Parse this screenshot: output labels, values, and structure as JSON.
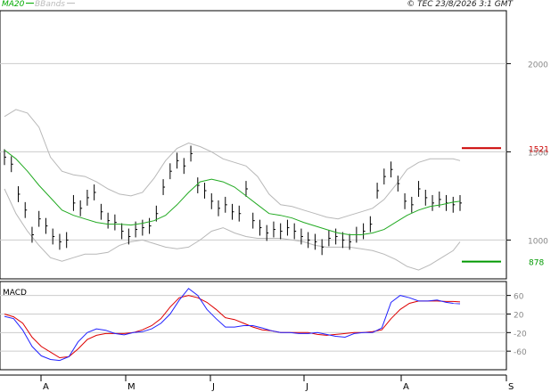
{
  "header": {
    "legend": [
      {
        "label": "MA20",
        "color": "#00aa00"
      },
      {
        "label": "BBands",
        "color": "#bbbbbb"
      }
    ],
    "copyright": "© TEC 23/8/2026 3:1 GMT"
  },
  "colors": {
    "ma20": "#22aa22",
    "bbands": "#b8b8b8",
    "ohlc": "#000000",
    "macd": "#2222ff",
    "signal": "#dd0000",
    "resistance": "#cc0000",
    "support": "#009900",
    "grid": "#cccccc"
  },
  "chart_data": [
    {
      "type": "line",
      "title": "",
      "ylim": [
        780,
        2300
      ],
      "y_ticks": [
        {
          "value": 1000,
          "label": "1000"
        },
        {
          "value": 1500,
          "label": "1500"
        },
        {
          "value": 2000,
          "label": "2000"
        }
      ],
      "x_month_labels": [
        "A",
        "M",
        "J",
        "J",
        "A",
        "S"
      ],
      "levels": [
        {
          "name": "resistance",
          "value": 1521,
          "label": "1521"
        },
        {
          "name": "support",
          "value": 878,
          "label": "878"
        }
      ],
      "series": [
        {
          "name": "price",
          "x": [
            0,
            3,
            6,
            9,
            12,
            15,
            18,
            21,
            24,
            27,
            30,
            33,
            36,
            39,
            42,
            45,
            48,
            51,
            54,
            57,
            60,
            63,
            66,
            69,
            72,
            75,
            78,
            81,
            84,
            87,
            90,
            93,
            96,
            99,
            102,
            105,
            108,
            111,
            114,
            117,
            120,
            123,
            126,
            129,
            132,
            135,
            138,
            141,
            144,
            147,
            150,
            153,
            156,
            159,
            162,
            165,
            168,
            171,
            174,
            177,
            180,
            183,
            186,
            189,
            192,
            195,
            198
          ],
          "y": [
            1470,
            1430,
            1260,
            1170,
            1030,
            1120,
            1080,
            1020,
            990,
            1000,
            1210,
            1180,
            1240,
            1270,
            1160,
            1110,
            1100,
            1050,
            1020,
            1060,
            1070,
            1080,
            1150,
            1300,
            1390,
            1450,
            1420,
            1490,
            1310,
            1280,
            1220,
            1180,
            1200,
            1160,
            1150,
            1290,
            1110,
            1070,
            1040,
            1060,
            1050,
            1070,
            1050,
            1020,
            1000,
            990,
            960,
            1010,
            1020,
            1000,
            990,
            1030,
            1050,
            1090,
            1280,
            1360,
            1400,
            1320,
            1220,
            1200,
            1290,
            1240,
            1210,
            1230,
            1210,
            1200,
            1210
          ]
        },
        {
          "name": "ma20",
          "x": [
            0,
            5,
            10,
            15,
            20,
            25,
            30,
            35,
            40,
            45,
            50,
            55,
            60,
            65,
            70,
            75,
            80,
            85,
            90,
            95,
            100,
            105,
            110,
            115,
            120,
            125,
            130,
            135,
            140,
            145,
            150,
            155,
            160,
            165,
            170,
            175,
            180,
            185,
            190,
            195,
            198
          ],
          "y": [
            1510,
            1460,
            1390,
            1310,
            1240,
            1170,
            1140,
            1120,
            1100,
            1090,
            1090,
            1085,
            1095,
            1110,
            1140,
            1200,
            1270,
            1330,
            1345,
            1330,
            1300,
            1250,
            1200,
            1150,
            1140,
            1125,
            1100,
            1080,
            1060,
            1040,
            1030,
            1030,
            1040,
            1060,
            1100,
            1140,
            1170,
            1190,
            1200,
            1215,
            1220
          ]
        },
        {
          "name": "bband_upper",
          "x": [
            0,
            5,
            10,
            15,
            20,
            25,
            30,
            35,
            40,
            45,
            50,
            55,
            60,
            65,
            70,
            75,
            80,
            85,
            90,
            95,
            100,
            105,
            110,
            115,
            120,
            125,
            130,
            135,
            140,
            145,
            150,
            155,
            160,
            165,
            170,
            175,
            180,
            185,
            190,
            195,
            198
          ],
          "y": [
            1700,
            1740,
            1720,
            1640,
            1470,
            1390,
            1370,
            1360,
            1330,
            1290,
            1260,
            1250,
            1270,
            1350,
            1450,
            1520,
            1550,
            1530,
            1500,
            1460,
            1440,
            1420,
            1360,
            1260,
            1200,
            1190,
            1170,
            1150,
            1130,
            1120,
            1140,
            1160,
            1180,
            1230,
            1310,
            1400,
            1440,
            1460,
            1460,
            1460,
            1450
          ]
        },
        {
          "name": "bband_lower",
          "x": [
            0,
            5,
            10,
            15,
            20,
            25,
            30,
            35,
            40,
            45,
            50,
            55,
            60,
            65,
            70,
            75,
            80,
            85,
            90,
            95,
            100,
            105,
            110,
            115,
            120,
            125,
            130,
            135,
            140,
            145,
            150,
            155,
            160,
            165,
            170,
            175,
            180,
            185,
            190,
            195,
            198
          ],
          "y": [
            1290,
            1150,
            1050,
            970,
            900,
            880,
            900,
            920,
            920,
            930,
            970,
            990,
            1000,
            980,
            960,
            950,
            960,
            1000,
            1050,
            1070,
            1040,
            1020,
            1010,
            1010,
            1010,
            1000,
            990,
            970,
            960,
            960,
            960,
            950,
            940,
            920,
            890,
            850,
            830,
            860,
            900,
            940,
            990
          ]
        }
      ]
    },
    {
      "type": "line",
      "title": "MACD",
      "ylim": [
        -100,
        90
      ],
      "y_ticks": [
        {
          "value": 60,
          "label": "60"
        },
        {
          "value": 20,
          "label": "20"
        },
        {
          "value": -20,
          "label": "-20"
        },
        {
          "value": -60,
          "label": "-60"
        }
      ],
      "series": [
        {
          "name": "macd",
          "x": [
            0,
            4,
            8,
            12,
            16,
            20,
            24,
            28,
            32,
            36,
            40,
            44,
            48,
            52,
            56,
            60,
            64,
            68,
            72,
            76,
            80,
            84,
            88,
            92,
            96,
            100,
            104,
            108,
            112,
            116,
            120,
            124,
            128,
            132,
            136,
            140,
            144,
            148,
            152,
            156,
            160,
            164,
            168,
            172,
            176,
            180,
            184,
            188,
            192,
            195,
            198
          ],
          "y": [
            15,
            10,
            -15,
            -50,
            -70,
            -78,
            -80,
            -72,
            -40,
            -20,
            -12,
            -15,
            -22,
            -25,
            -20,
            -18,
            -12,
            0,
            20,
            50,
            75,
            60,
            30,
            10,
            -8,
            -8,
            -5,
            -5,
            -10,
            -16,
            -20,
            -20,
            -22,
            -22,
            -20,
            -24,
            -28,
            -30,
            -22,
            -20,
            -20,
            -10,
            45,
            60,
            55,
            48,
            48,
            50,
            45,
            43,
            42
          ]
        },
        {
          "name": "signal",
          "x": [
            0,
            4,
            8,
            12,
            16,
            20,
            24,
            28,
            32,
            36,
            40,
            44,
            48,
            52,
            56,
            60,
            64,
            68,
            72,
            76,
            80,
            84,
            88,
            92,
            96,
            100,
            104,
            108,
            112,
            116,
            120,
            124,
            128,
            132,
            136,
            140,
            144,
            148,
            152,
            156,
            160,
            164,
            168,
            172,
            176,
            180,
            184,
            188,
            192,
            195,
            198
          ],
          "y": [
            20,
            14,
            0,
            -30,
            -50,
            -62,
            -74,
            -72,
            -55,
            -35,
            -26,
            -22,
            -22,
            -22,
            -20,
            -14,
            -5,
            10,
            35,
            55,
            60,
            55,
            45,
            30,
            12,
            8,
            0,
            -8,
            -14,
            -16,
            -20,
            -20,
            -20,
            -20,
            -24,
            -26,
            -24,
            -22,
            -20,
            -20,
            -18,
            -14,
            10,
            30,
            43,
            48,
            48,
            48,
            47,
            47,
            46
          ]
        }
      ]
    }
  ]
}
